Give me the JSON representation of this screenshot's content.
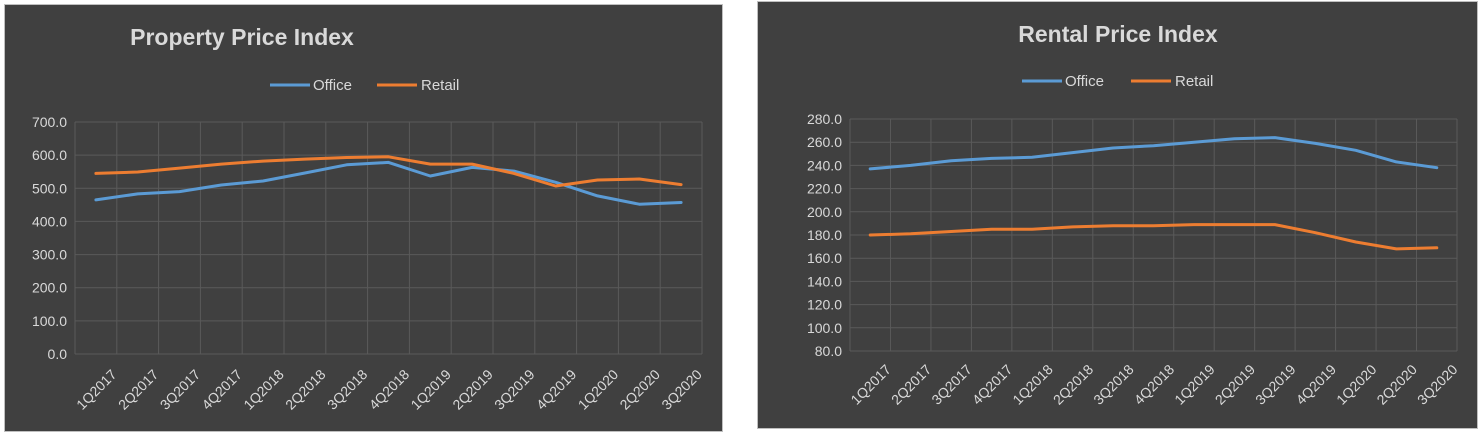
{
  "chart_data": [
    {
      "type": "line",
      "title": "Property Price Index",
      "categories": [
        "1Q2017",
        "2Q2017",
        "3Q2017",
        "4Q2017",
        "1Q2018",
        "2Q2018",
        "3Q2018",
        "4Q2018",
        "1Q2019",
        "2Q2019",
        "3Q2019",
        "4Q2019",
        "1Q2020",
        "2Q2020",
        "3Q2020"
      ],
      "series": [
        {
          "name": "Office",
          "color": "#5b9bd5",
          "values": [
            465,
            483,
            490,
            510,
            522,
            546,
            571,
            578,
            537,
            563,
            552,
            518,
            477,
            452,
            457
          ]
        },
        {
          "name": "Retail",
          "color": "#ed7d31",
          "values": [
            545,
            549,
            561,
            573,
            582,
            588,
            593,
            595,
            573,
            573,
            545,
            507,
            525,
            528,
            511
          ]
        }
      ],
      "yticks": [
        "0.0",
        "100.0",
        "200.0",
        "300.0",
        "400.0",
        "500.0",
        "600.0",
        "700.0"
      ],
      "ylim": [
        0,
        700
      ],
      "grid": true,
      "legend": "top"
    },
    {
      "type": "line",
      "title": "Rental Price Index",
      "categories": [
        "1Q2017",
        "2Q2017",
        "3Q2017",
        "4Q2017",
        "1Q2018",
        "2Q2018",
        "3Q2018",
        "4Q2018",
        "1Q2019",
        "2Q2019",
        "3Q2019",
        "4Q2019",
        "1Q2020",
        "2Q2020",
        "3Q2020"
      ],
      "series": [
        {
          "name": "Office",
          "color": "#5b9bd5",
          "values": [
            237,
            240,
            244,
            246,
            247,
            251,
            255,
            257,
            260,
            263,
            264,
            259,
            253,
            243,
            238
          ]
        },
        {
          "name": "Retail",
          "color": "#ed7d31",
          "values": [
            180,
            181,
            183,
            185,
            185,
            187,
            188,
            188,
            189,
            189,
            189,
            182,
            174,
            168,
            169
          ]
        }
      ],
      "yticks": [
        "80.0",
        "100.0",
        "120.0",
        "140.0",
        "160.0",
        "180.0",
        "200.0",
        "220.0",
        "240.0",
        "260.0",
        "280.0"
      ],
      "ylim": [
        80,
        280
      ],
      "grid": true,
      "legend": "top"
    }
  ]
}
